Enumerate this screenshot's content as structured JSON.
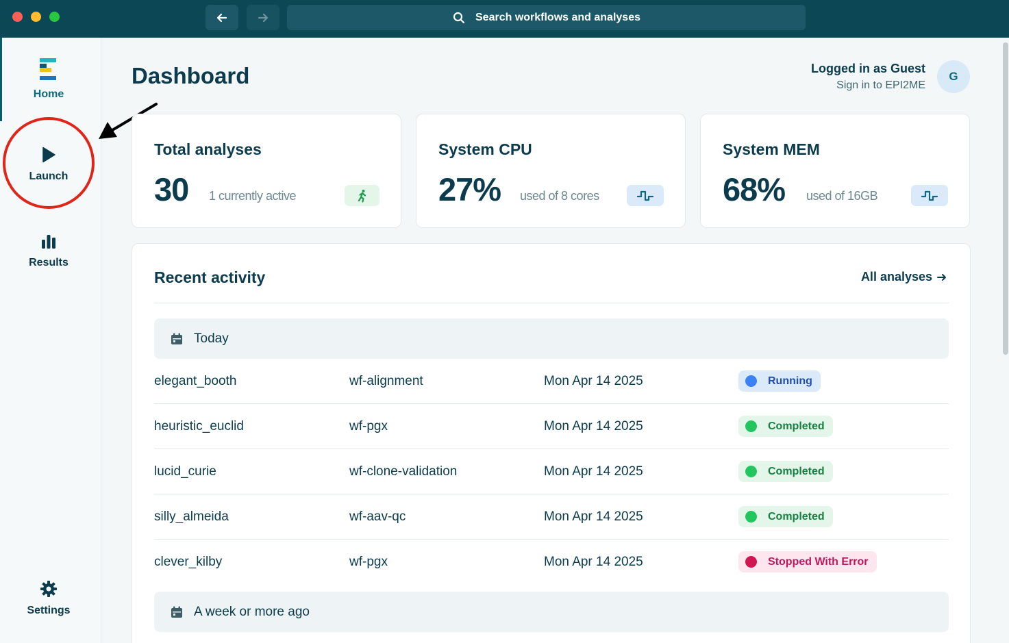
{
  "window": {
    "search_placeholder": "Search workflows and analyses"
  },
  "sidebar": {
    "home": "Home",
    "launch": "Launch",
    "results": "Results",
    "settings": "Settings"
  },
  "header": {
    "title": "Dashboard",
    "user_status": "Logged in as Guest",
    "sign_in": "Sign in to EPI2ME",
    "avatar_initial": "G"
  },
  "stats": {
    "total": {
      "title": "Total analyses",
      "value": "30",
      "sub": "1 currently active",
      "icon": "running-person-icon"
    },
    "cpu": {
      "title": "System CPU",
      "value": "27%",
      "sub": "used of 8 cores",
      "icon": "pulse-icon"
    },
    "mem": {
      "title": "System MEM",
      "value": "68%",
      "sub": "used of 16GB",
      "icon": "pulse-icon"
    }
  },
  "activity": {
    "title": "Recent activity",
    "all_link": "All analyses",
    "groups": [
      {
        "label": "Today",
        "rows": [
          {
            "name": "elegant_booth",
            "workflow": "wf-alignment",
            "date": "Mon Apr 14 2025",
            "status": "Running"
          },
          {
            "name": "heuristic_euclid",
            "workflow": "wf-pgx",
            "date": "Mon Apr 14 2025",
            "status": "Completed"
          },
          {
            "name": "lucid_curie",
            "workflow": "wf-clone-validation",
            "date": "Mon Apr 14 2025",
            "status": "Completed"
          },
          {
            "name": "silly_almeida",
            "workflow": "wf-aav-qc",
            "date": "Mon Apr 14 2025",
            "status": "Completed"
          },
          {
            "name": "clever_kilby",
            "workflow": "wf-pgx",
            "date": "Mon Apr 14 2025",
            "status": "Stopped With Error"
          }
        ]
      },
      {
        "label": "A week or more ago",
        "rows": []
      }
    ]
  },
  "colors": {
    "titlebar": "#0c4756",
    "running": "#3b82f6",
    "completed": "#22c55e",
    "error": "#d11652",
    "annotation": "#e0251b"
  }
}
